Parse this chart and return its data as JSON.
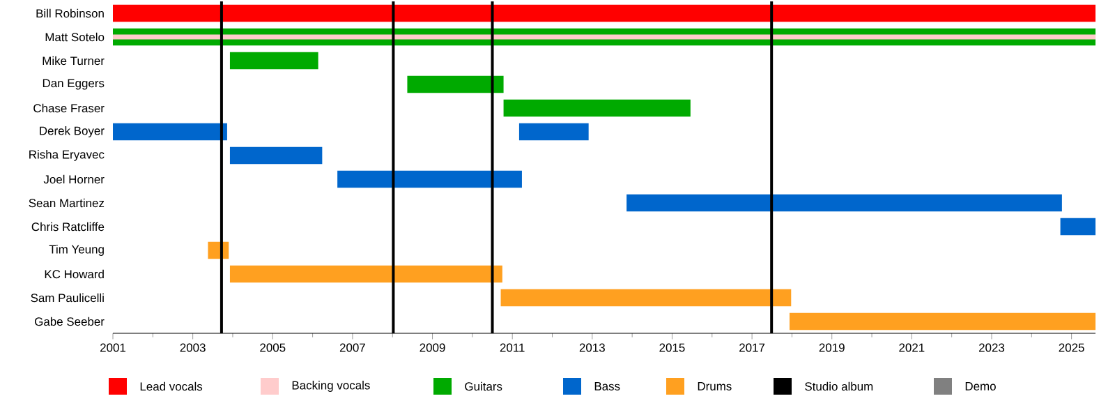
{
  "chart_data": {
    "type": "bar",
    "orientation": "horizontal",
    "categories": [
      "Bill Robinson",
      "Matt Sotelo",
      "Mike Turner",
      "Dan Eggers",
      "Chase Fraser",
      "Derek Boyer",
      "Risha Eryavec",
      "Joel Horner",
      "Sean Martinez",
      "Chris Ratcliffe",
      "Tim Yeung",
      "KC Howard",
      "Sam Paulicelli",
      "Gabe Seeber"
    ],
    "series": [
      {
        "name": "Lead vocals",
        "color": "#ff0000",
        "base": [
          2001,
          null,
          null,
          null,
          null,
          null,
          null,
          null,
          null,
          null,
          null,
          null,
          null,
          null
        ],
        "values": [
          24.6,
          null,
          null,
          null,
          null,
          null,
          null,
          null,
          null,
          null,
          null,
          null,
          null,
          null
        ]
      },
      {
        "name": "Backing vocals",
        "color": "#ffcccc",
        "base": [
          null,
          2001,
          null,
          null,
          null,
          null,
          null,
          null,
          null,
          null,
          null,
          null,
          null,
          null
        ],
        "values": [
          null,
          24.6,
          null,
          null,
          null,
          null,
          null,
          null,
          null,
          null,
          null,
          null,
          null,
          null
        ]
      },
      {
        "name": "Guitars",
        "color": "#00aa00",
        "base": [
          null,
          2001,
          2003.93,
          2008.37,
          2010.78,
          null,
          null,
          null,
          null,
          null,
          null,
          null,
          null,
          null
        ],
        "values": [
          null,
          24.6,
          2.21,
          2.41,
          4.68,
          null,
          null,
          null,
          null,
          null,
          null,
          null,
          null,
          null
        ]
      },
      {
        "name": "Bass",
        "color": "#0066cc",
        "base": [
          null,
          null,
          null,
          null,
          null,
          2001,
          2003.93,
          2006.62,
          2013.86,
          2024.72,
          null,
          null,
          null,
          null
        ],
        "values": [
          null,
          null,
          null,
          null,
          null,
          2.86,
          2.31,
          4.62,
          10.9,
          0.88,
          null,
          null,
          null,
          null
        ]
      },
      {
        "color": "#0066cc",
        "base": [
          null,
          null,
          null,
          null,
          null,
          2011.17,
          null,
          null,
          null,
          null,
          null,
          null,
          null,
          null
        ],
        "values": [
          null,
          null,
          null,
          null,
          null,
          1.74,
          null,
          null,
          null,
          null,
          null,
          null,
          null,
          null
        ]
      },
      {
        "name": "Drums",
        "color": "#ffa020",
        "base": [
          null,
          null,
          null,
          null,
          null,
          null,
          null,
          null,
          null,
          null,
          2003.38,
          2003.93,
          2010.71,
          2017.94
        ],
        "values": [
          null,
          null,
          null,
          null,
          null,
          null,
          null,
          null,
          null,
          null,
          0.52,
          6.82,
          7.27,
          7.66
        ]
      },
      {
        "name": "Demo",
        "color": "#808080",
        "base": [
          null,
          null,
          null,
          null,
          null,
          null,
          null,
          null,
          null,
          null,
          null,
          null,
          null,
          null
        ],
        "values": [
          null,
          null,
          null,
          null,
          null,
          null,
          null,
          null,
          null,
          null,
          null,
          null,
          null,
          null
        ]
      }
    ],
    "ref_lines": [
      {
        "axis": "x",
        "value": 2003.72,
        "label": "Studio album",
        "color": "#000000"
      },
      {
        "axis": "x",
        "value": 2008.02,
        "color": "#000000"
      },
      {
        "axis": "x",
        "value": 2010.5,
        "color": "#000000"
      },
      {
        "axis": "x",
        "value": 2017.49,
        "color": "#000000"
      }
    ],
    "xlim": [
      2001,
      2025.6
    ],
    "xticks": [
      2001,
      2003,
      2005,
      2007,
      2009,
      2011,
      2013,
      2015,
      2017,
      2019,
      2021,
      2023,
      2025
    ],
    "legend": "bottom",
    "grid": false
  }
}
